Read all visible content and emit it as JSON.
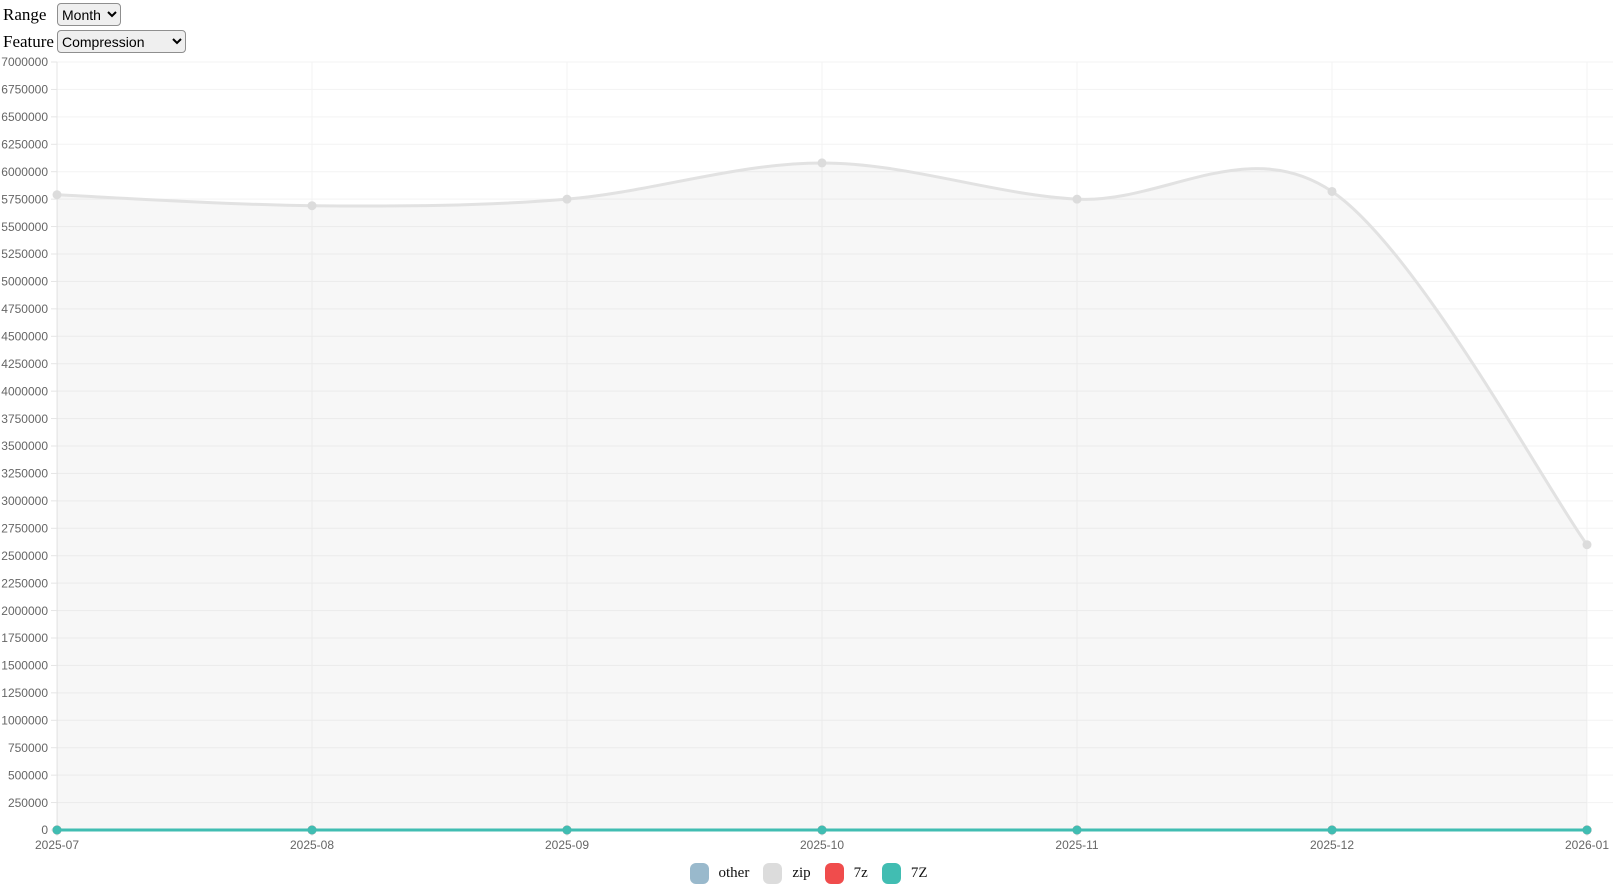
{
  "controls": {
    "range": {
      "label": "Range",
      "value": "Month",
      "options": [
        "Month"
      ]
    },
    "feature": {
      "label": "Feature",
      "value": "Compression",
      "options": [
        "Compression"
      ]
    }
  },
  "legend": {
    "position": "bottom",
    "items": [
      {
        "label": "other",
        "color": "#99b9cc"
      },
      {
        "label": "zip",
        "color": "#dcdcdc"
      },
      {
        "label": "7z",
        "color": "#f04c4c"
      },
      {
        "label": "7Z",
        "color": "#41bdb2"
      }
    ]
  },
  "chart_data": {
    "type": "line",
    "title": "",
    "xlabel": "",
    "ylabel": "",
    "x": [
      "2025-07",
      "2025-08",
      "2025-09",
      "2025-10",
      "2025-11",
      "2025-12",
      "2026-01"
    ],
    "series": [
      {
        "name": "other",
        "color": "#99b9cc",
        "fill": false,
        "values": [
          0,
          0,
          0,
          0,
          0,
          0,
          0
        ]
      },
      {
        "name": "zip",
        "color": "#e2e2e2",
        "dot_color": "#dcdcdc",
        "fill": true,
        "fill_color": "rgba(0,0,0,0.032)",
        "values": [
          5790000,
          5690000,
          5750000,
          6080000,
          5750000,
          5820000,
          2600000
        ]
      },
      {
        "name": "7z",
        "color": "#f04c4c",
        "fill": false,
        "values": [
          0,
          0,
          0,
          0,
          0,
          0,
          0
        ]
      },
      {
        "name": "7Z",
        "color": "#41bdb2",
        "fill": false,
        "values": [
          0,
          0,
          0,
          0,
          0,
          0,
          0
        ]
      }
    ],
    "ylim": [
      0,
      7000000
    ],
    "ytick_step": 250000,
    "grid": true,
    "grid_color": "#f3f3f3",
    "axis_color": "#e5e5e5",
    "legend_position": "bottom"
  }
}
